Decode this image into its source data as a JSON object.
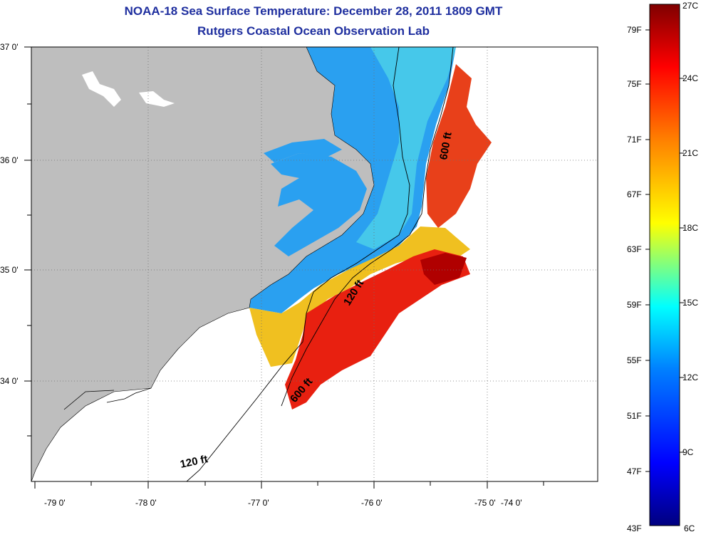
{
  "header": {
    "title": "NOAA-18 Sea Surface Temperature:  December 28, 2011 1809 GMT",
    "subtitle": "Rutgers Coastal Ocean Observation Lab"
  },
  "map": {
    "lat_labels": [
      "37 0'",
      "36 0'",
      "35 0'",
      "34 0'"
    ],
    "lon_labels": [
      "-79 0'",
      "-78 0'",
      "-77 0'",
      "-76 0'",
      "-75 0'",
      "-74 0'"
    ],
    "contour_labels": {
      "c600_north": "600 ft",
      "c120_mid": "120 ft",
      "c600_south": "600 ft",
      "c120_south": "120 ft"
    },
    "colors": {
      "land": "#bebebe",
      "no_data": "#ffffff",
      "cold_water": "#2aa0f0",
      "warm_water": "#e82010"
    }
  },
  "colorbar": {
    "fahrenheit": [
      "79F",
      "75F",
      "71F",
      "67F",
      "63F",
      "59F",
      "55F",
      "51F",
      "47F",
      "43F"
    ],
    "celsius": [
      "27C",
      "24C",
      "21C",
      "18C",
      "15C",
      "12C",
      "9C",
      "6C"
    ]
  }
}
